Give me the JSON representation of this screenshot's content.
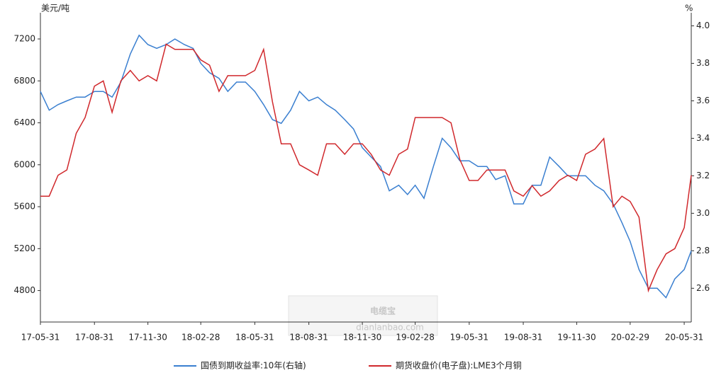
{
  "chart_data": {
    "type": "line",
    "y_label": "美元/吨",
    "y2_label": "%",
    "watermark": "电缆宝",
    "watermark_url": "dianlanbao.com",
    "x": [
      "17-05-31",
      "17-06-15",
      "17-06-30",
      "17-07-15",
      "17-07-31",
      "17-08-15",
      "17-08-31",
      "17-09-15",
      "17-09-30",
      "17-10-15",
      "17-10-31",
      "17-11-15",
      "17-11-30",
      "17-12-15",
      "17-12-31",
      "18-01-15",
      "18-01-31",
      "18-02-15",
      "18-02-28",
      "18-03-15",
      "18-03-31",
      "18-04-15",
      "18-04-30",
      "18-05-15",
      "18-05-31",
      "18-06-15",
      "18-06-30",
      "18-07-15",
      "18-07-31",
      "18-08-15",
      "18-08-31",
      "18-09-15",
      "18-09-30",
      "18-10-15",
      "18-10-31",
      "18-11-15",
      "18-11-30",
      "18-12-15",
      "18-12-31",
      "19-01-15",
      "19-01-31",
      "19-02-15",
      "19-02-28",
      "19-03-15",
      "19-03-31",
      "19-04-15",
      "19-04-30",
      "19-05-15",
      "19-05-31",
      "19-06-15",
      "19-06-30",
      "19-07-15",
      "19-07-31",
      "19-08-15",
      "19-08-31",
      "19-09-15",
      "19-09-30",
      "19-10-15",
      "19-10-31",
      "19-11-15",
      "19-11-30",
      "19-12-15",
      "19-12-31",
      "20-01-15",
      "20-01-31",
      "20-02-15",
      "20-02-29",
      "20-03-15",
      "20-03-31",
      "20-04-15",
      "20-04-30",
      "20-05-15",
      "20-05-31",
      "20-06-12"
    ],
    "series": [
      {
        "name": "国债到期收益率:10年(右轴)",
        "color": "#3a7fd0",
        "axis": "y2",
        "values": [
          3.65,
          3.55,
          3.58,
          3.6,
          3.62,
          3.62,
          3.65,
          3.65,
          3.62,
          3.7,
          3.85,
          3.95,
          3.9,
          3.88,
          3.9,
          3.93,
          3.9,
          3.88,
          3.8,
          3.75,
          3.72,
          3.65,
          3.7,
          3.7,
          3.65,
          3.58,
          3.5,
          3.48,
          3.55,
          3.65,
          3.6,
          3.62,
          3.58,
          3.55,
          3.5,
          3.45,
          3.35,
          3.3,
          3.25,
          3.12,
          3.15,
          3.1,
          3.15,
          3.08,
          3.25,
          3.4,
          3.35,
          3.28,
          3.28,
          3.25,
          3.25,
          3.18,
          3.2,
          3.05,
          3.05,
          3.15,
          3.15,
          3.3,
          3.25,
          3.2,
          3.2,
          3.2,
          3.15,
          3.12,
          3.05,
          2.95,
          2.85,
          2.7,
          2.6,
          2.6,
          2.55,
          2.65,
          2.7,
          2.8
        ]
      },
      {
        "name": "期货收盘价(电子盘):LME3个月铜",
        "color": "#d0282c",
        "values": [
          5700,
          5700,
          5900,
          5950,
          6300,
          6450,
          6750,
          6800,
          6500,
          6800,
          6900,
          6800,
          6850,
          6800,
          7150,
          7100,
          7100,
          7100,
          7000,
          6950,
          6700,
          6850,
          6850,
          6850,
          6900,
          7100,
          6600,
          6200,
          6200,
          6000,
          5950,
          5900,
          6200,
          6200,
          6100,
          6200,
          6200,
          6100,
          5950,
          5900,
          6100,
          6150,
          6450,
          6450,
          6450,
          6450,
          6400,
          6050,
          5850,
          5850,
          5950,
          5950,
          5950,
          5750,
          5700,
          5800,
          5700,
          5750,
          5850,
          5900,
          5850,
          6100,
          6150,
          6250,
          5600,
          5700,
          5650,
          5500,
          4800,
          5000,
          5150,
          5200,
          5400,
          5900
        ]
      }
    ],
    "xlim": [
      "17-05-31",
      "20-06-12"
    ],
    "xticks": [
      "17-05-31",
      "17-08-31",
      "17-11-30",
      "18-02-28",
      "18-05-31",
      "18-08-31",
      "18-11-30",
      "19-02-28",
      "19-05-31",
      "19-08-31",
      "19-11-30",
      "20-02-29",
      "20-05-31"
    ],
    "ylim": [
      4500,
      7450
    ],
    "yticks": [
      4800,
      5200,
      5600,
      6000,
      6400,
      6800,
      7200
    ],
    "y2lim": [
      2.42,
      4.07
    ],
    "y2ticks": [
      {
        "value": 2.6,
        "label": "2.6"
      },
      {
        "value": 2.8,
        "label": "2.8"
      },
      {
        "value": 3.0,
        "label": "3.0"
      },
      {
        "value": 3.2,
        "label": "3.2"
      },
      {
        "value": 3.4,
        "label": "3.4"
      },
      {
        "value": 3.6,
        "label": "3.6"
      },
      {
        "value": 3.8,
        "label": "3.8"
      },
      {
        "value": 4.0,
        "label": "4.0"
      }
    ]
  }
}
